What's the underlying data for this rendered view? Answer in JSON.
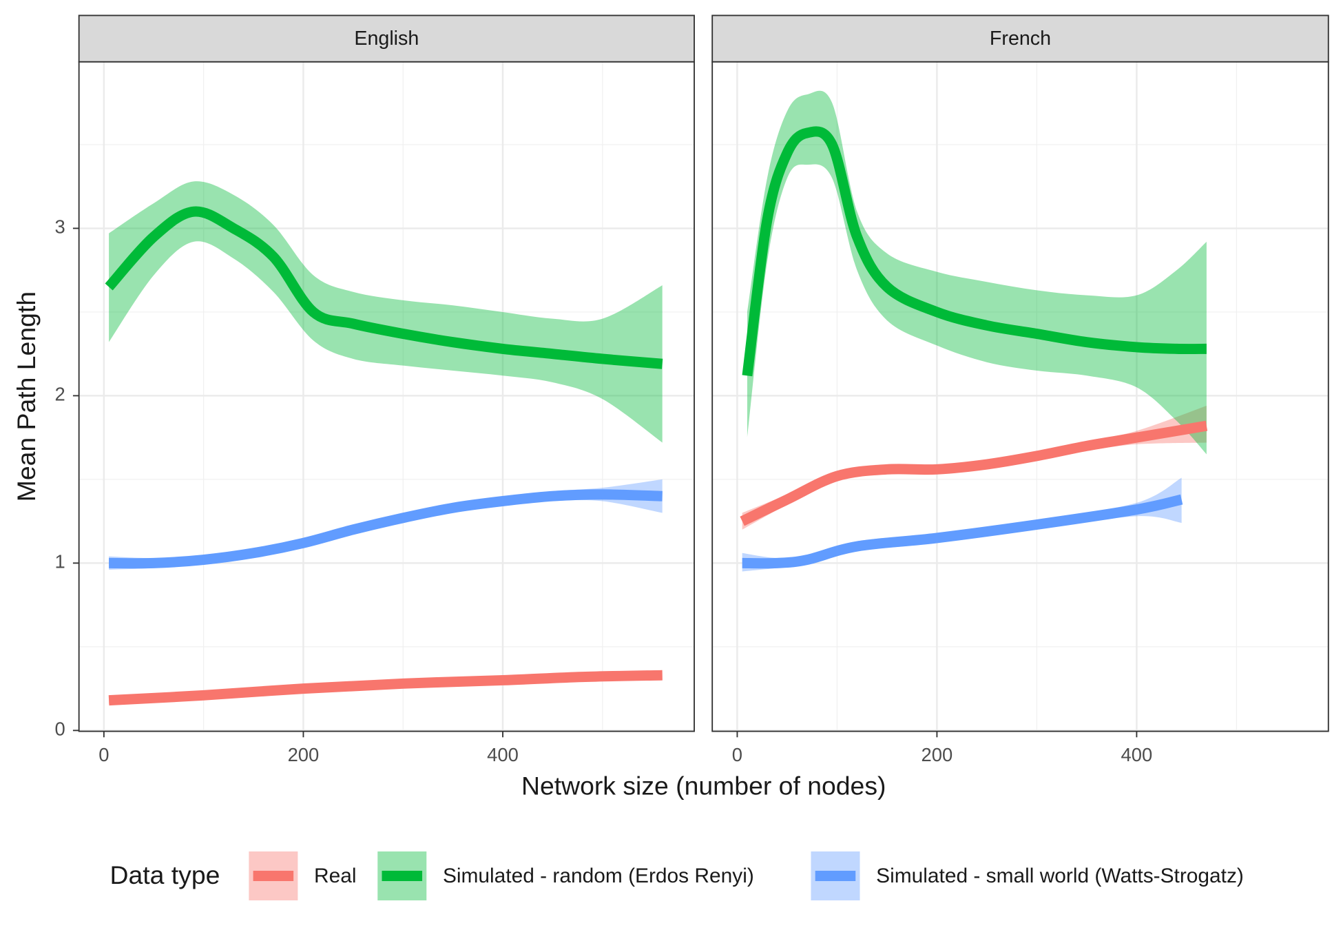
{
  "chart_data": {
    "type": "line",
    "x_label": "Network size (number of nodes)",
    "y_label": "Mean Path Length",
    "legend_title": "Data type",
    "legend_position": "bottom",
    "grid": true,
    "xlim": [
      -25,
      592
    ],
    "ylim": [
      -0.005,
      3.995
    ],
    "xticks": [
      0,
      200,
      400
    ],
    "yticks": [
      0,
      1,
      2,
      3
    ],
    "xminor": [
      100,
      300,
      500
    ],
    "yminor": [
      0.5,
      1.5,
      2.5,
      3.5
    ],
    "series": [
      {
        "name": "Real",
        "color": "#F8766D"
      },
      {
        "name": "Simulated - random (Erdos Renyi)",
        "color": "#00BA38"
      },
      {
        "name": "Simulated - small world (Watts-Strogatz)",
        "color": "#619CFF"
      }
    ],
    "facets": [
      {
        "title": "English",
        "lines": [
          {
            "x": [
              5,
              100,
              200,
              300,
              400,
              480,
              560
            ],
            "values": [
              0.18,
              0.21,
              0.25,
              0.28,
              0.3,
              0.32,
              0.33
            ],
            "lower": [
              0.16,
              0.2,
              0.24,
              0.27,
              0.29,
              0.3,
              0.3
            ],
            "upper": [
              0.2,
              0.22,
              0.26,
              0.29,
              0.31,
              0.34,
              0.36
            ]
          },
          {
            "x": [
              5,
              50,
              90,
              130,
              170,
              210,
              250,
              300,
              350,
              400,
              450,
              500,
              560
            ],
            "values": [
              2.65,
              2.95,
              3.1,
              3.0,
              2.83,
              2.5,
              2.43,
              2.37,
              2.32,
              2.28,
              2.25,
              2.22,
              2.19
            ],
            "lower": [
              2.32,
              2.72,
              2.92,
              2.82,
              2.62,
              2.33,
              2.22,
              2.18,
              2.15,
              2.12,
              2.08,
              1.98,
              1.72
            ],
            "upper": [
              2.97,
              3.15,
              3.28,
              3.2,
              3.02,
              2.72,
              2.62,
              2.57,
              2.54,
              2.5,
              2.46,
              2.46,
              2.66
            ]
          },
          {
            "x": [
              5,
              50,
              100,
              150,
              200,
              250,
              300,
              350,
              400,
              450,
              500,
              560
            ],
            "values": [
              1.0,
              1.0,
              1.02,
              1.06,
              1.12,
              1.2,
              1.27,
              1.33,
              1.37,
              1.4,
              1.41,
              1.4
            ],
            "lower": [
              0.96,
              0.97,
              0.99,
              1.03,
              1.09,
              1.17,
              1.24,
              1.3,
              1.34,
              1.37,
              1.37,
              1.3
            ],
            "upper": [
              1.04,
              1.03,
              1.05,
              1.09,
              1.15,
              1.23,
              1.3,
              1.36,
              1.4,
              1.43,
              1.45,
              1.5
            ]
          }
        ]
      },
      {
        "title": "French",
        "lines": [
          {
            "x": [
              5,
              50,
              100,
              150,
              200,
              250,
              300,
              350,
              400,
              470
            ],
            "values": [
              1.25,
              1.38,
              1.52,
              1.56,
              1.56,
              1.59,
              1.64,
              1.7,
              1.75,
              1.82
            ],
            "lower": [
              1.2,
              1.35,
              1.5,
              1.54,
              1.54,
              1.57,
              1.62,
              1.67,
              1.71,
              1.72
            ],
            "upper": [
              1.3,
              1.41,
              1.54,
              1.58,
              1.58,
              1.61,
              1.66,
              1.73,
              1.79,
              1.94
            ]
          },
          {
            "x": [
              10,
              30,
              50,
              70,
              95,
              120,
              150,
              200,
              250,
              300,
              350,
              400,
              440,
              470
            ],
            "values": [
              2.12,
              3.05,
              3.45,
              3.57,
              3.5,
              2.95,
              2.65,
              2.5,
              2.42,
              2.37,
              2.32,
              2.29,
              2.28,
              2.28
            ],
            "lower": [
              1.75,
              2.8,
              3.3,
              3.38,
              3.3,
              2.75,
              2.45,
              2.3,
              2.2,
              2.15,
              2.12,
              2.05,
              1.85,
              1.65
            ],
            "upper": [
              2.5,
              3.3,
              3.7,
              3.8,
              3.75,
              3.1,
              2.85,
              2.74,
              2.68,
              2.63,
              2.6,
              2.6,
              2.75,
              2.92
            ]
          },
          {
            "x": [
              5,
              40,
              70,
              120,
              200,
              300,
              400,
              445
            ],
            "values": [
              1.0,
              1.0,
              1.02,
              1.1,
              1.15,
              1.23,
              1.32,
              1.38
            ],
            "lower": [
              0.95,
              0.97,
              0.99,
              1.07,
              1.12,
              1.2,
              1.28,
              1.24
            ],
            "upper": [
              1.06,
              1.03,
              1.05,
              1.13,
              1.18,
              1.26,
              1.36,
              1.51
            ]
          }
        ]
      }
    ]
  }
}
